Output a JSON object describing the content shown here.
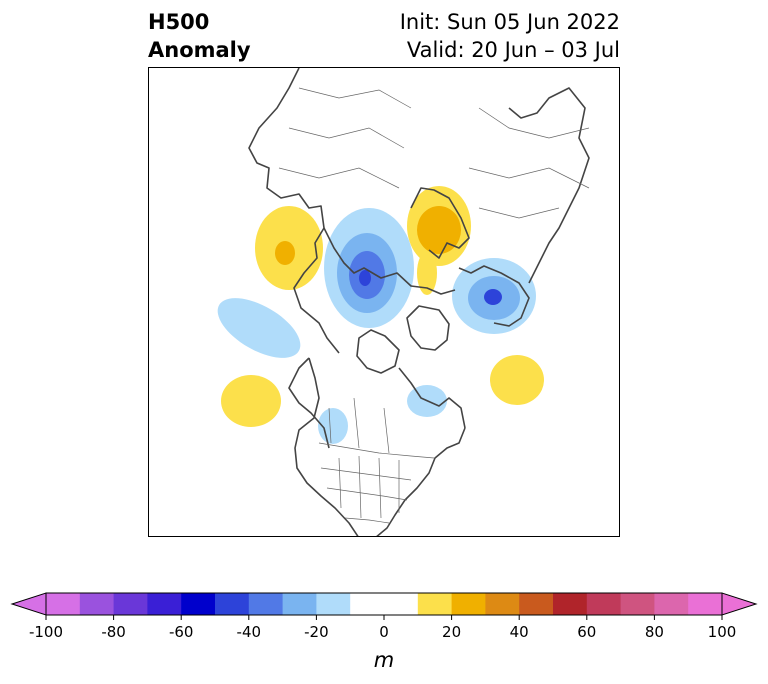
{
  "title": {
    "left_line1": "H500",
    "left_line2": "Anomaly",
    "right_line1": "Init: Sun 05 Jun 2022",
    "right_line2": "Valid: 20 Jun – 03 Jul"
  },
  "colorbar": {
    "unit": "m",
    "min": -100,
    "max": 100,
    "step": 10,
    "tick_values": [
      -100,
      -80,
      -60,
      -40,
      -20,
      0,
      20,
      40,
      60,
      80,
      100
    ],
    "tick_labels": [
      "-100",
      "-80",
      "-60",
      "-40",
      "-20",
      "0",
      "20",
      "40",
      "60",
      "80",
      "100"
    ],
    "colors": [
      "#d670e6",
      "#9a52de",
      "#6a37d8",
      "#3a1fd6",
      "#0000cc",
      "#2d43d9",
      "#5179e6",
      "#7ab4f0",
      "#b0dcfa",
      "#ffffff",
      "#ffffff",
      "#fce04b",
      "#f0b000",
      "#dd8a14",
      "#c95a1e",
      "#b0242a",
      "#c03a5a",
      "#cf5480",
      "#dc66ad",
      "#ea70d6"
    ],
    "under_color": "#d670e6",
    "over_color": "#ea70d6"
  },
  "map": {
    "region": "Northern Hemisphere polar stereographic",
    "anomaly_areas": [
      {
        "name": "anomaly-positive-west-russia",
        "sign": "positive",
        "peak_m": 30
      },
      {
        "name": "anomaly-negative-central-siberia",
        "sign": "negative",
        "peak_m": -50
      },
      {
        "name": "anomaly-positive-northeast-siberia",
        "sign": "positive",
        "peak_m": 30
      },
      {
        "name": "anomaly-negative-alaska",
        "sign": "negative",
        "peak_m": -40
      },
      {
        "name": "anomaly-negative-east-asia",
        "sign": "negative",
        "peak_m": -20
      },
      {
        "name": "anomaly-positive-north-pacific",
        "sign": "positive",
        "peak_m": 20
      },
      {
        "name": "anomaly-positive-north-atlantic",
        "sign": "positive",
        "peak_m": 20
      },
      {
        "name": "anomaly-negative-hudson-bay",
        "sign": "negative",
        "peak_m": -20
      },
      {
        "name": "anomaly-negative-pacific-northwest",
        "sign": "negative",
        "peak_m": -20
      }
    ]
  }
}
